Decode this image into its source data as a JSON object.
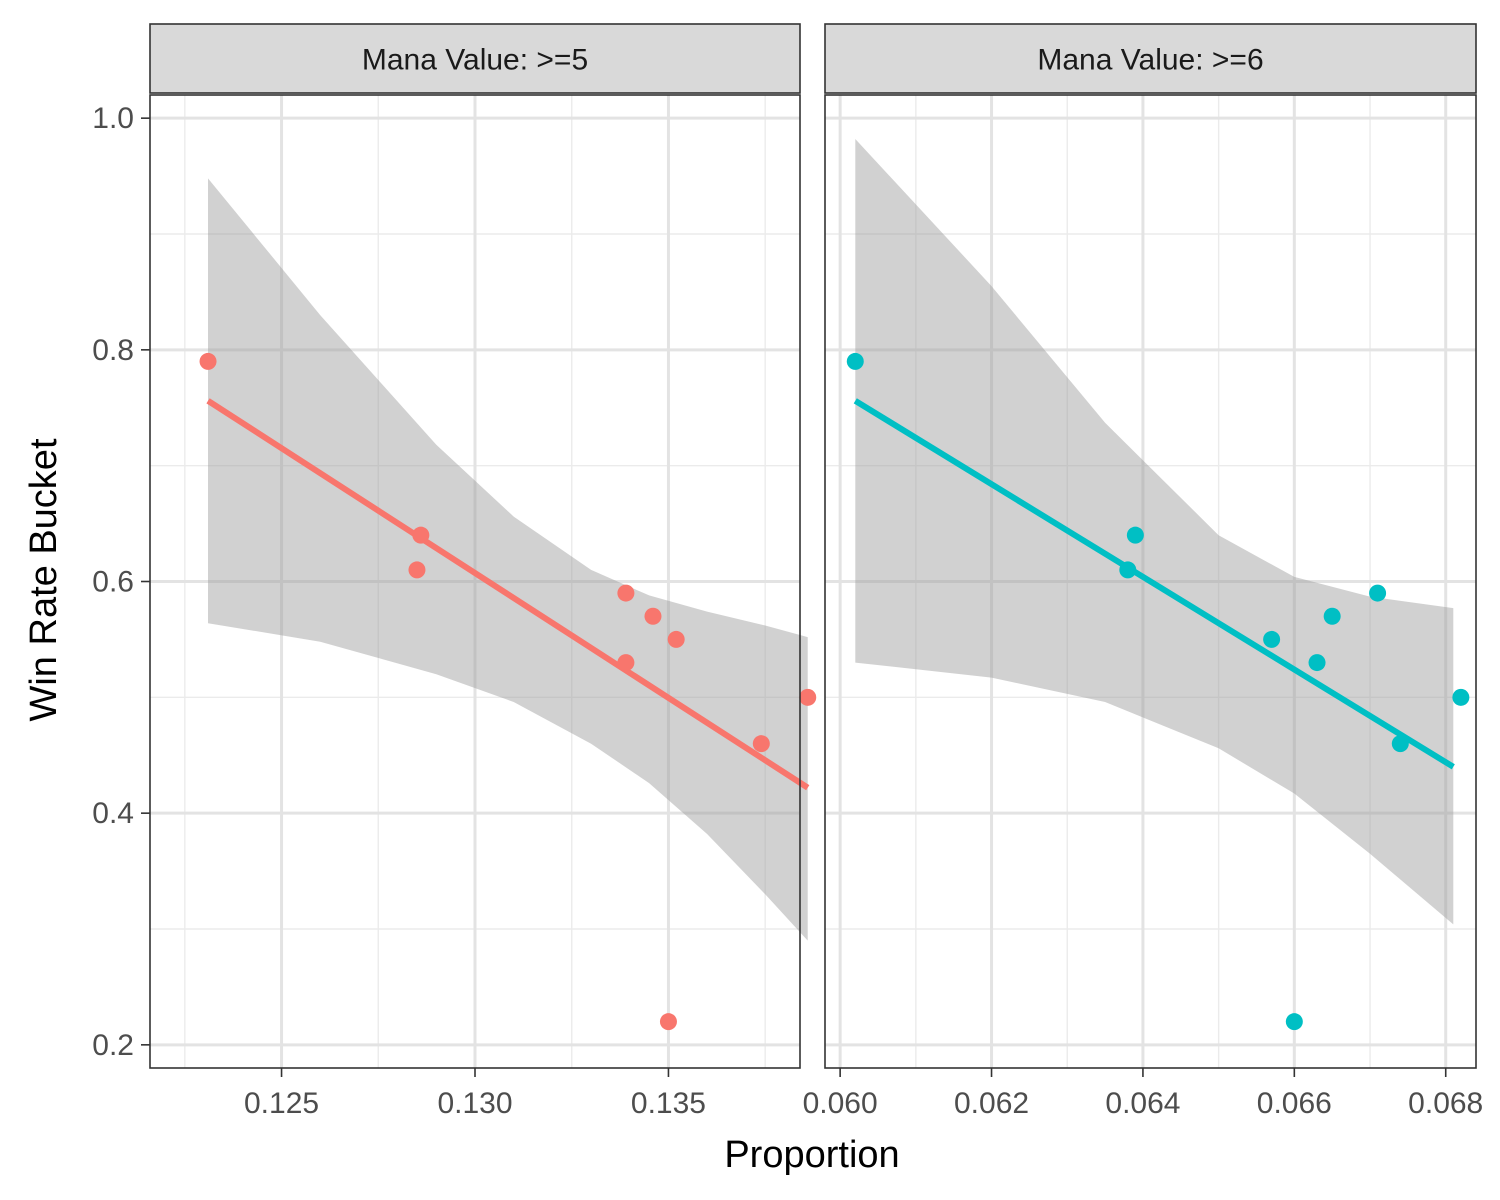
{
  "chart_data": {
    "type": "scatter",
    "xlabel": "Proportion",
    "ylabel": "Win Rate Bucket",
    "ylim": [
      0.18,
      1.02
    ],
    "yticks": [
      0.2,
      0.4,
      0.6,
      0.8,
      1.0
    ],
    "ytick_labels": [
      "0.2",
      "0.4",
      "0.6",
      "0.8",
      "1.0"
    ],
    "grid": true,
    "legend": "none",
    "panels": [
      {
        "strip": "Mana Value: >=5",
        "color": "#F8766D",
        "xlim": [
          0.1216,
          0.1384
        ],
        "xticks": [
          0.125,
          0.13,
          0.135
        ],
        "xtick_labels": [
          "0.125",
          "0.130",
          "0.135"
        ],
        "points": [
          {
            "x": 0.1231,
            "y": 0.79
          },
          {
            "x": 0.1286,
            "y": 0.64
          },
          {
            "x": 0.1285,
            "y": 0.61
          },
          {
            "x": 0.1339,
            "y": 0.59
          },
          {
            "x": 0.1346,
            "y": 0.57
          },
          {
            "x": 0.1352,
            "y": 0.55
          },
          {
            "x": 0.1339,
            "y": 0.53
          },
          {
            "x": 0.1374,
            "y": 0.46
          },
          {
            "x": 0.1386,
            "y": 0.5
          },
          {
            "x": 0.135,
            "y": 0.22
          }
        ],
        "fit": {
          "x": [
            0.1231,
            0.1386
          ],
          "y": [
            0.756,
            0.422
          ]
        },
        "band": {
          "x": [
            0.1231,
            0.126,
            0.129,
            0.131,
            0.133,
            0.1345,
            0.136,
            0.1375,
            0.1386
          ],
          "upper": [
            0.948,
            0.83,
            0.718,
            0.656,
            0.61,
            0.588,
            0.574,
            0.562,
            0.552
          ],
          "lower": [
            0.564,
            0.548,
            0.52,
            0.496,
            0.46,
            0.426,
            0.382,
            0.33,
            0.29
          ]
        }
      },
      {
        "strip": "Mana Value: >=6",
        "color": "#00BFC4",
        "xlim": [
          0.0598,
          0.0684
        ],
        "xticks": [
          0.06,
          0.062,
          0.064,
          0.066,
          0.068
        ],
        "xtick_labels": [
          "0.060",
          "0.062",
          "0.064",
          "0.066",
          "0.068"
        ],
        "points": [
          {
            "x": 0.0602,
            "y": 0.79
          },
          {
            "x": 0.0639,
            "y": 0.64
          },
          {
            "x": 0.0638,
            "y": 0.61
          },
          {
            "x": 0.0671,
            "y": 0.59
          },
          {
            "x": 0.0665,
            "y": 0.57
          },
          {
            "x": 0.0657,
            "y": 0.55
          },
          {
            "x": 0.0663,
            "y": 0.53
          },
          {
            "x": 0.0674,
            "y": 0.46
          },
          {
            "x": 0.0682,
            "y": 0.5
          },
          {
            "x": 0.066,
            "y": 0.22
          }
        ],
        "fit": {
          "x": [
            0.0602,
            0.0681
          ],
          "y": [
            0.756,
            0.44
          ]
        },
        "band": {
          "x": [
            0.0602,
            0.062,
            0.0635,
            0.065,
            0.066,
            0.067,
            0.0681
          ],
          "upper": [
            0.982,
            0.855,
            0.737,
            0.64,
            0.604,
            0.587,
            0.577
          ],
          "lower": [
            0.53,
            0.517,
            0.496,
            0.456,
            0.417,
            0.365,
            0.304
          ]
        }
      }
    ]
  }
}
